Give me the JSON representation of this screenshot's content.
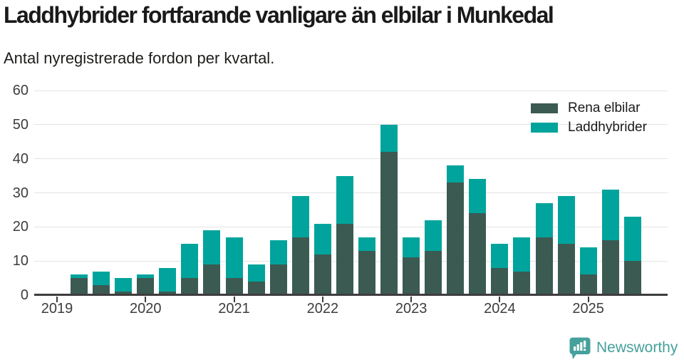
{
  "header": {
    "title": "Laddhybrider fortfarande vanligare än elbilar i Munkedal",
    "subtitle": "Antal nyregistrerade fordon per kvartal."
  },
  "branding": {
    "logo_text": "Newsworthy",
    "logo_color": "#46a09b",
    "logo_icon": "speech-bubble-with-bar-chart-and-exclamation"
  },
  "colors": {
    "title_text": "#1a1a1a",
    "axis_text": "#3d3d3d",
    "gridline": "#e4e4e4",
    "axis_line": "#3d3d3d"
  },
  "chart_data": {
    "type": "bar",
    "stacked": true,
    "title": "Laddhybrider fortfarande vanligare än elbilar i Munkedal",
    "subtitle": "Antal nyregistrerade fordon per kvartal.",
    "grid": true,
    "legend_position": "top-right",
    "ylim": [
      0,
      60
    ],
    "y_ticks": [
      0,
      10,
      20,
      30,
      40,
      50,
      60
    ],
    "year_ticks": [
      "2019",
      "2020",
      "2021",
      "2022",
      "2023",
      "2024",
      "2025"
    ],
    "x_quarters": [
      "2019 Q1",
      "2019 Q2",
      "2019 Q3",
      "2019 Q4",
      "2020 Q1",
      "2020 Q2",
      "2020 Q3",
      "2020 Q4",
      "2021 Q1",
      "2021 Q2",
      "2021 Q3",
      "2021 Q4",
      "2022 Q1",
      "2022 Q2",
      "2022 Q3",
      "2022 Q4",
      "2023 Q1",
      "2023 Q2",
      "2023 Q3",
      "2023 Q4",
      "2024 Q1",
      "2024 Q2",
      "2024 Q3",
      "2024 Q4",
      "2025 Q1",
      "2025 Q2",
      "2025 Q3"
    ],
    "series": [
      {
        "name": "Rena elbilar",
        "color": "#3b5a52",
        "values": [
          0,
          5,
          3,
          1,
          5,
          1,
          5,
          9,
          5,
          4,
          9,
          17,
          12,
          21,
          13,
          42,
          11,
          13,
          33,
          24,
          8,
          7,
          17,
          15,
          6,
          16,
          10
        ]
      },
      {
        "name": "Laddhybrider",
        "color": "#00a49c",
        "values": [
          0,
          1,
          4,
          4,
          1,
          7,
          10,
          10,
          12,
          5,
          7,
          12,
          9,
          14,
          4,
          8,
          6,
          9,
          5,
          10,
          7,
          10,
          10,
          14,
          8,
          15,
          13
        ]
      }
    ],
    "totals": [
      0,
      6,
      7,
      5,
      6,
      8,
      15,
      19,
      17,
      9,
      16,
      29,
      21,
      35,
      17,
      50,
      17,
      22,
      38,
      34,
      15,
      17,
      27,
      29,
      14,
      31,
      23
    ]
  }
}
